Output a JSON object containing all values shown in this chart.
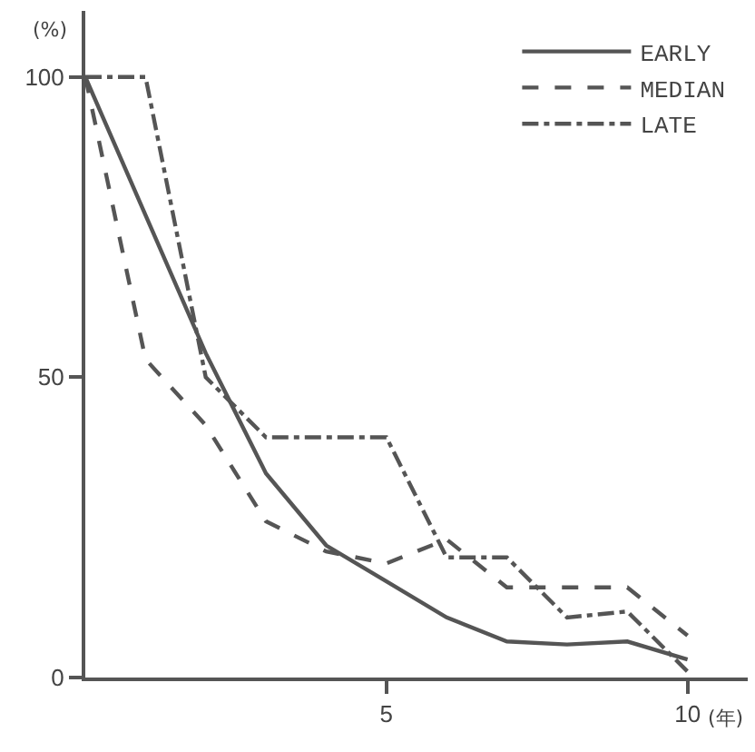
{
  "chart_data": {
    "type": "line",
    "x": [
      0,
      1,
      2,
      3,
      4,
      5,
      6,
      7,
      8,
      9,
      10
    ],
    "series": [
      {
        "name": "EARLY",
        "color": "#555555",
        "line_style": "solid",
        "values": [
          100,
          77,
          54,
          34,
          22,
          16,
          10,
          6,
          5.5,
          6,
          3
        ]
      },
      {
        "name": "MEDIAN",
        "color": "#555555",
        "line_style": "dashed",
        "values": [
          100,
          53,
          42,
          26,
          21,
          19,
          23,
          15,
          15,
          15,
          7
        ]
      },
      {
        "name": "LATE",
        "color": "#555555",
        "line_style": "dashdot",
        "values": [
          100,
          100,
          50,
          40,
          40,
          40,
          20,
          20,
          10,
          11,
          1
        ]
      }
    ],
    "xlabel": "(年)",
    "ylabel": "(%)",
    "xlim": [
      0,
      11
    ],
    "xticks": [
      5,
      10
    ],
    "ylim": [
      0,
      111
    ],
    "yticks": [
      0,
      50,
      100
    ],
    "legend": "top right",
    "marker": "none"
  }
}
